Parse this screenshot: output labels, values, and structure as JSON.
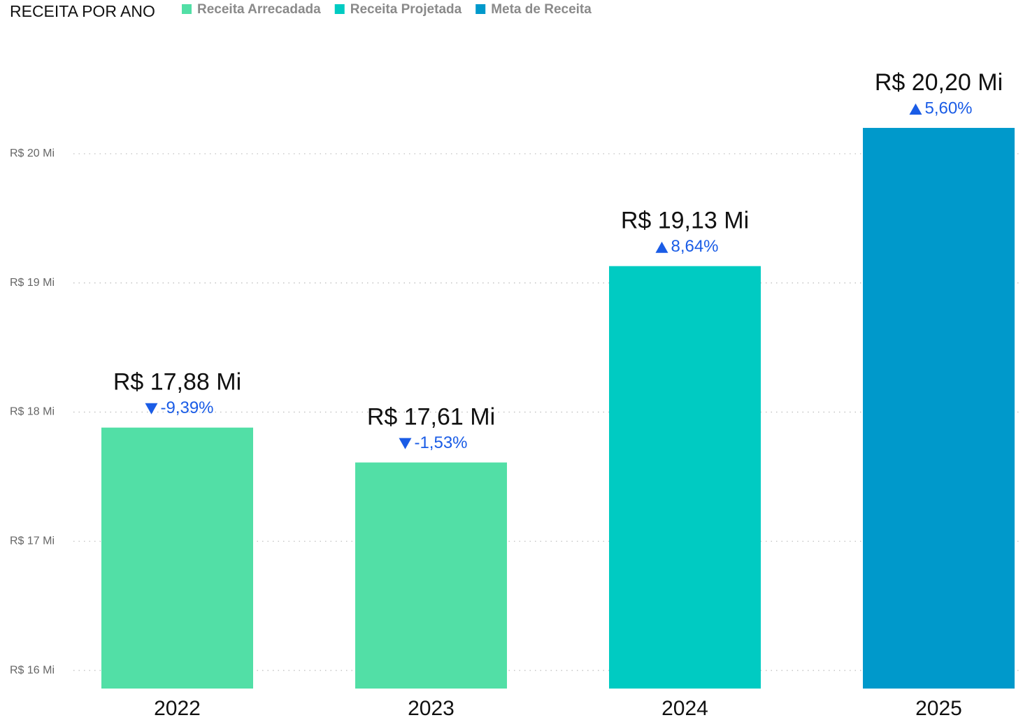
{
  "chart_data": {
    "type": "bar",
    "title": "RECEITA POR ANO",
    "categories": [
      "2022",
      "2023",
      "2024",
      "2025"
    ],
    "series": [
      {
        "name": "Receita Arrecadada",
        "color": "#52dfa6",
        "values": [
          17.88,
          17.61,
          null,
          null
        ],
        "value_labels": [
          "R$ 17,88 Mi",
          "R$ 17,61 Mi",
          null,
          null
        ]
      },
      {
        "name": "Receita Projetada",
        "color": "#00cbc2",
        "values": [
          null,
          null,
          19.13,
          null
        ],
        "value_labels": [
          null,
          null,
          "R$ 19,13 Mi",
          null
        ]
      },
      {
        "name": "Meta de Receita",
        "color": "#0099cb",
        "values": [
          null,
          null,
          null,
          20.2
        ],
        "value_labels": [
          null,
          null,
          null,
          "R$ 20,20 Mi"
        ]
      }
    ],
    "changes": {
      "values": [
        -9.39,
        -1.53,
        8.64,
        5.6
      ],
      "value_labels": [
        "-9,39%",
        "-1,53%",
        "8,64%",
        "5,60%"
      ]
    },
    "ylim": [
      15.86,
      21.19
    ],
    "yticks": [
      {
        "value": 16,
        "label": "R$ 16 Mi"
      },
      {
        "value": 17,
        "label": "R$ 17 Mi"
      },
      {
        "value": 18,
        "label": "R$ 18 Mi"
      },
      {
        "value": 19,
        "label": "R$ 19 Mi"
      },
      {
        "value": 20,
        "label": "R$ 20 Mi"
      }
    ],
    "grid": true,
    "legend": "top"
  }
}
